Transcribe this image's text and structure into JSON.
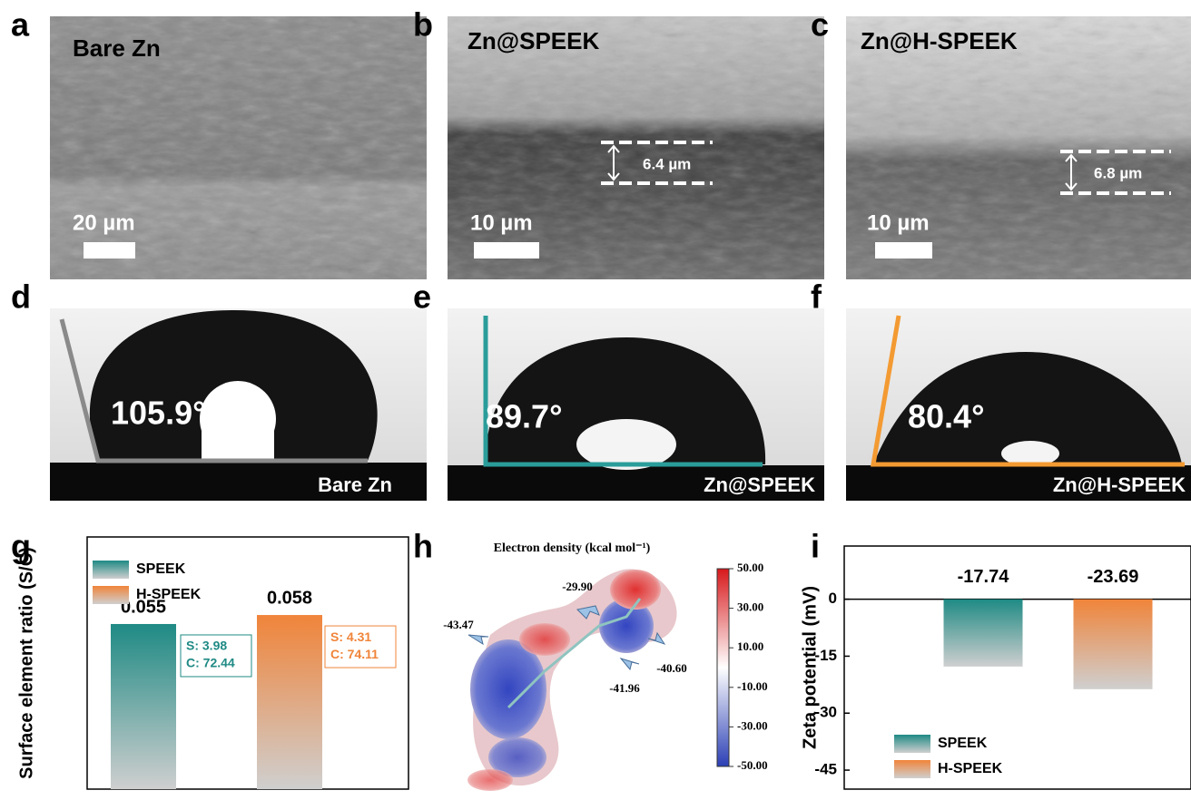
{
  "panels": {
    "a": {
      "label": "a",
      "title": "Bare Zn",
      "scale_bar": "20 µm"
    },
    "b": {
      "label": "b",
      "title": "Zn@SPEEK",
      "scale_bar": "10 µm",
      "thickness": "6.4 µm"
    },
    "c": {
      "label": "c",
      "title": "Zn@H-SPEEK",
      "scale_bar": "10 µm",
      "thickness": "6.8 µm"
    },
    "d": {
      "label": "d",
      "angle": "105.9°",
      "caption": "Bare Zn"
    },
    "e": {
      "label": "e",
      "angle": "89.7°",
      "caption": "Zn@SPEEK"
    },
    "f": {
      "label": "f",
      "angle": "80.4°",
      "caption": "Zn@H-SPEEK"
    },
    "h": {
      "label": "h",
      "title": "Electron density (kcal mol⁻¹)",
      "annotations": [
        "-29.90",
        "-43.47",
        "-41.96",
        "-40.60"
      ],
      "colorbar": {
        "lim": [
          -50,
          50
        ],
        "ticks": [
          {
            "value": 50,
            "label": "50.00"
          },
          {
            "value": 30,
            "label": "30.00"
          },
          {
            "value": 10,
            "label": "10.00"
          },
          {
            "value": -10,
            "label": "-10.00"
          },
          {
            "value": -30,
            "label": "-30.00"
          },
          {
            "value": -50,
            "label": "-50.00"
          }
        ]
      }
    }
  },
  "chart_data": [
    {
      "type": "bar",
      "panel_label": "g",
      "ylabel": "Surface element ratio (S/C)",
      "categories": [
        null,
        null
      ],
      "series": [
        {
          "name": "SPEEK",
          "color": "#1f8a84",
          "values": [
            0.055,
            null
          ]
        },
        {
          "name": "H-SPEEK",
          "color": "#f0843a",
          "values": [
            null,
            0.058
          ]
        }
      ],
      "ylim": [
        0,
        0.084
      ],
      "annotations": [
        [
          "S: 3.98",
          "C: 72.44"
        ],
        [
          "S: 4.31",
          "C: 74.11"
        ]
      ]
    },
    {
      "type": "bar",
      "panel_label": "i",
      "ylabel": "Zeta potential (mV)",
      "categories": [
        null,
        null
      ],
      "series": [
        {
          "name": "SPEEK",
          "color": "#1f8a84",
          "values": [
            -17.74,
            null
          ]
        },
        {
          "name": "H-SPEEK",
          "color": "#f0843a",
          "values": [
            null,
            -23.69
          ]
        }
      ],
      "ylim": [
        -50,
        14
      ],
      "yticks": [
        0,
        -15,
        -30,
        -45
      ]
    }
  ]
}
